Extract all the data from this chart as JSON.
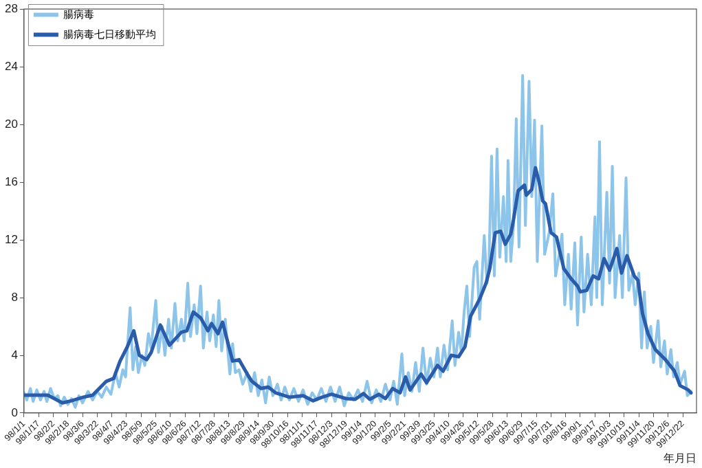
{
  "chart_data": {
    "type": "line",
    "xlabel": "年月日",
    "legend": "top left",
    "grid": false,
    "marker": "none",
    "line_style": "solid",
    "xlim": [
      "2009-01-01",
      "2011-01-06"
    ],
    "ylim": [
      0,
      28
    ],
    "yticks": [
      0,
      4,
      8,
      12,
      16,
      20,
      24,
      28
    ],
    "xticks": [
      {
        "value": "2009-01-01",
        "label": "98/1/1"
      },
      {
        "value": "2009-01-17",
        "label": "98/1/17"
      },
      {
        "value": "2009-02-02",
        "label": "98/2/2"
      },
      {
        "value": "2009-02-18",
        "label": "98/2/18"
      },
      {
        "value": "2009-03-06",
        "label": "98/3/6"
      },
      {
        "value": "2009-03-22",
        "label": "98/3/22"
      },
      {
        "value": "2009-04-07",
        "label": "98/4/7"
      },
      {
        "value": "2009-04-23",
        "label": "98/4/23"
      },
      {
        "value": "2009-05-09",
        "label": "98/5/9"
      },
      {
        "value": "2009-05-25",
        "label": "98/5/25"
      },
      {
        "value": "2009-06-10",
        "label": "98/6/10"
      },
      {
        "value": "2009-06-26",
        "label": "98/6/26"
      },
      {
        "value": "2009-07-12",
        "label": "98/7/12"
      },
      {
        "value": "2009-07-28",
        "label": "98/7/28"
      },
      {
        "value": "2009-08-13",
        "label": "98/8/13"
      },
      {
        "value": "2009-08-29",
        "label": "98/8/29"
      },
      {
        "value": "2009-09-14",
        "label": "98/9/14"
      },
      {
        "value": "2009-09-30",
        "label": "98/9/30"
      },
      {
        "value": "2009-10-16",
        "label": "98/10/16"
      },
      {
        "value": "2009-11-01",
        "label": "98/11/1"
      },
      {
        "value": "2009-11-17",
        "label": "98/11/17"
      },
      {
        "value": "2009-12-03",
        "label": "98/12/3"
      },
      {
        "value": "2009-12-19",
        "label": "98/12/19"
      },
      {
        "value": "2010-01-04",
        "label": "99/1/4"
      },
      {
        "value": "2010-01-20",
        "label": "99/1/20"
      },
      {
        "value": "2010-02-05",
        "label": "99/2/5"
      },
      {
        "value": "2010-02-21",
        "label": "99/2/21"
      },
      {
        "value": "2010-03-09",
        "label": "99/3/9"
      },
      {
        "value": "2010-03-25",
        "label": "99/3/25"
      },
      {
        "value": "2010-04-10",
        "label": "99/4/10"
      },
      {
        "value": "2010-04-26",
        "label": "99/4/26"
      },
      {
        "value": "2010-05-12",
        "label": "99/5/12"
      },
      {
        "value": "2010-05-28",
        "label": "99/5/28"
      },
      {
        "value": "2010-06-13",
        "label": "99/6/13"
      },
      {
        "value": "2010-06-29",
        "label": "99/6/29"
      },
      {
        "value": "2010-07-15",
        "label": "99/7/15"
      },
      {
        "value": "2010-07-31",
        "label": "99/7/31"
      },
      {
        "value": "2010-08-16",
        "label": "99/8/16"
      },
      {
        "value": "2010-09-01",
        "label": "99/9/1"
      },
      {
        "value": "2010-09-17",
        "label": "99/9/17"
      },
      {
        "value": "2010-10-03",
        "label": "99/10/3"
      },
      {
        "value": "2010-10-19",
        "label": "99/10/19"
      },
      {
        "value": "2010-11-04",
        "label": "99/11/4"
      },
      {
        "value": "2010-11-20",
        "label": "99/11/20"
      },
      {
        "value": "2010-12-06",
        "label": "99/12/6"
      },
      {
        "value": "2010-12-22",
        "label": "99/12/22"
      }
    ],
    "series": [
      {
        "name": "腸病毒",
        "color": "#8dc5ea",
        "x": [
          "2009-01-01",
          "2009-01-04",
          "2009-01-08",
          "2009-01-11",
          "2009-01-15",
          "2009-01-19",
          "2009-01-23",
          "2009-01-26",
          "2009-01-30",
          "2009-02-03",
          "2009-02-07",
          "2009-02-10",
          "2009-02-14",
          "2009-02-18",
          "2009-02-22",
          "2009-02-26",
          "2009-03-02",
          "2009-03-06",
          "2009-03-12",
          "2009-03-17",
          "2009-03-22",
          "2009-03-27",
          "2009-04-01",
          "2009-04-06",
          "2009-04-11",
          "2009-04-15",
          "2009-04-19",
          "2009-04-22",
          "2009-04-24",
          "2009-04-27",
          "2009-04-30",
          "2009-05-03",
          "2009-05-06",
          "2009-05-10",
          "2009-05-13",
          "2009-05-17",
          "2009-05-20",
          "2009-05-25",
          "2009-05-28",
          "2009-06-01",
          "2009-06-04",
          "2009-06-08",
          "2009-06-11",
          "2009-06-15",
          "2009-06-18",
          "2009-06-22",
          "2009-06-25",
          "2009-06-29",
          "2009-07-02",
          "2009-07-06",
          "2009-07-09",
          "2009-07-13",
          "2009-07-16",
          "2009-07-20",
          "2009-07-23",
          "2009-07-27",
          "2009-07-30",
          "2009-08-02",
          "2009-08-05",
          "2009-08-09",
          "2009-08-11",
          "2009-08-14",
          "2009-08-17",
          "2009-08-20",
          "2009-08-24",
          "2009-08-28",
          "2009-09-02",
          "2009-09-06",
          "2009-09-10",
          "2009-09-14",
          "2009-09-18",
          "2009-09-22",
          "2009-09-26",
          "2009-09-30",
          "2009-10-05",
          "2009-10-09",
          "2009-10-13",
          "2009-10-18",
          "2009-10-23",
          "2009-10-28",
          "2009-11-02",
          "2009-11-07",
          "2009-11-12",
          "2009-11-17",
          "2009-11-22",
          "2009-11-27",
          "2009-12-02",
          "2009-12-07",
          "2009-12-12",
          "2009-12-17",
          "2009-12-22",
          "2009-12-27",
          "2010-01-01",
          "2010-01-06",
          "2010-01-11",
          "2010-01-16",
          "2010-01-21",
          "2010-01-26",
          "2010-01-31",
          "2010-02-05",
          "2010-02-09",
          "2010-02-13",
          "2010-02-18",
          "2010-02-21",
          "2010-02-25",
          "2010-03-01",
          "2010-03-05",
          "2010-03-09",
          "2010-03-13",
          "2010-03-17",
          "2010-03-21",
          "2010-03-25",
          "2010-03-29",
          "2010-04-01",
          "2010-04-05",
          "2010-04-09",
          "2010-04-14",
          "2010-04-17",
          "2010-04-21",
          "2010-04-24",
          "2010-04-27",
          "2010-04-30",
          "2010-05-03",
          "2010-05-08",
          "2010-05-11",
          "2010-05-14",
          "2010-05-19",
          "2010-05-22",
          "2010-05-24",
          "2010-05-27",
          "2010-05-30",
          "2010-06-02",
          "2010-06-05",
          "2010-06-09",
          "2010-06-12",
          "2010-06-14",
          "2010-06-17",
          "2010-06-20",
          "2010-06-23",
          "2010-06-26",
          "2010-06-30",
          "2010-07-03",
          "2010-07-07",
          "2010-07-10",
          "2010-07-13",
          "2010-07-16",
          "2010-07-21",
          "2010-07-24",
          "2010-07-29",
          "2010-08-02",
          "2010-08-05",
          "2010-08-09",
          "2010-08-12",
          "2010-08-15",
          "2010-08-19",
          "2010-08-22",
          "2010-08-26",
          "2010-08-29",
          "2010-09-02",
          "2010-09-05",
          "2010-09-09",
          "2010-09-13",
          "2010-09-17",
          "2010-09-19",
          "2010-09-22",
          "2010-09-25",
          "2010-09-30",
          "2010-10-03",
          "2010-10-06",
          "2010-10-09",
          "2010-10-14",
          "2010-10-17",
          "2010-10-21",
          "2010-10-24",
          "2010-10-28",
          "2010-10-31",
          "2010-11-04",
          "2010-11-07",
          "2010-11-10",
          "2010-11-13",
          "2010-11-17",
          "2010-11-20",
          "2010-11-25",
          "2010-11-28",
          "2010-12-02",
          "2010-12-05",
          "2010-12-09",
          "2010-12-12",
          "2010-12-16",
          "2010-12-19",
          "2010-12-24",
          "2010-12-27",
          "2010-12-31"
        ],
        "values": [
          1.4,
          0.9,
          1.7,
          0.8,
          1.6,
          0.9,
          1.5,
          0.8,
          1.7,
          1.0,
          1.2,
          0.5,
          1.1,
          0.6,
          1.0,
          0.4,
          1.2,
          0.7,
          1.5,
          0.9,
          1.5,
          1.1,
          1.8,
          1.3,
          2.8,
          1.8,
          3.0,
          2.5,
          4.5,
          7.3,
          3.0,
          4.6,
          2.8,
          4.0,
          3.3,
          5.5,
          4.5,
          7.8,
          4.2,
          6.0,
          4.0,
          6.5,
          4.5,
          7.6,
          5.0,
          6.5,
          5.0,
          9.0,
          5.3,
          7.5,
          5.5,
          8.8,
          4.5,
          7.0,
          5.0,
          6.8,
          4.6,
          7.8,
          4.3,
          6.5,
          4.8,
          2.7,
          4.8,
          2.8,
          3.0,
          2.0,
          2.8,
          1.5,
          2.8,
          1.2,
          2.3,
          0.7,
          2.5,
          1.2,
          2.0,
          0.9,
          1.8,
          0.9,
          1.7,
          0.8,
          1.6,
          0.6,
          1.4,
          0.9,
          1.7,
          0.8,
          1.8,
          0.8,
          1.8,
          0.5,
          1.4,
          0.9,
          1.6,
          0.8,
          2.2,
          0.7,
          1.6,
          0.8,
          2.0,
          0.9,
          2.2,
          0.6,
          4.1,
          1.2,
          2.8,
          1.5,
          3.5,
          1.5,
          4.5,
          2.0,
          3.8,
          2.5,
          4.5,
          2.5,
          4.7,
          3.0,
          6.4,
          3.3,
          5.6,
          4.2,
          7.0,
          8.8,
          5.3,
          10.1,
          10.5,
          6.5,
          12.3,
          9.0,
          10.0,
          17.8,
          9.5,
          18.3,
          10.8,
          15.0,
          10.5,
          17.5,
          10.5,
          13.0,
          20.4,
          11.5,
          23.4,
          13.0,
          23.0,
          15.0,
          20.3,
          10.5,
          19.9,
          11.0,
          12.5,
          15.2,
          9.5,
          11.0,
          12.4,
          7.5,
          11.0,
          7.2,
          11.8,
          6.1,
          12.2,
          7.0,
          11.0,
          7.5,
          13.6,
          8.0,
          18.8,
          7.5,
          15.3,
          9.0,
          17.1,
          8.0,
          12.3,
          8.0,
          16.3,
          8.5,
          9.7,
          7.5,
          9.7,
          4.5,
          8.4,
          4.5,
          6.0,
          3.5,
          6.4,
          3.2,
          5.0,
          2.7,
          4.4,
          2.5,
          3.5,
          2.0,
          2.9,
          1.2,
          1.5
        ]
      },
      {
        "name": "腸病毒七日移動平均",
        "color": "#2a5caa",
        "x": [
          "2009-01-02",
          "2009-01-27",
          "2009-02-12",
          "2009-02-22",
          "2009-03-07",
          "2009-03-17",
          "2009-04-01",
          "2009-04-09",
          "2009-04-16",
          "2009-04-24",
          "2009-05-01",
          "2009-05-07",
          "2009-05-15",
          "2009-05-20",
          "2009-05-30",
          "2009-06-09",
          "2009-06-22",
          "2009-06-28",
          "2009-07-05",
          "2009-07-13",
          "2009-07-21",
          "2009-07-25",
          "2009-08-01",
          "2009-08-06",
          "2009-08-17",
          "2009-08-24",
          "2009-09-02",
          "2009-09-07",
          "2009-09-17",
          "2009-09-25",
          "2009-10-03",
          "2009-10-18",
          "2009-11-02",
          "2009-11-13",
          "2009-11-23",
          "2009-12-03",
          "2009-12-19",
          "2009-12-29",
          "2010-01-07",
          "2010-01-14",
          "2010-01-24",
          "2010-01-31",
          "2010-02-08",
          "2010-02-16",
          "2010-02-22",
          "2010-02-27",
          "2010-03-11",
          "2010-03-17",
          "2010-03-29",
          "2010-04-04",
          "2010-04-13",
          "2010-04-21",
          "2010-04-28",
          "2010-05-04",
          "2010-05-14",
          "2010-05-21",
          "2010-05-25",
          "2010-05-31",
          "2010-06-06",
          "2010-06-11",
          "2010-06-17",
          "2010-06-20",
          "2010-06-25",
          "2010-07-02",
          "2010-07-04",
          "2010-07-10",
          "2010-07-14",
          "2010-07-18",
          "2010-07-22",
          "2010-07-25",
          "2010-07-31",
          "2010-08-06",
          "2010-08-14",
          "2010-08-22",
          "2010-08-29",
          "2010-09-01",
          "2010-09-08",
          "2010-09-15",
          "2010-09-21",
          "2010-09-27",
          "2010-10-03",
          "2010-10-11",
          "2010-10-16",
          "2010-10-22",
          "2010-10-30",
          "2010-11-03",
          "2010-11-08",
          "2010-11-14",
          "2010-11-22",
          "2010-12-03",
          "2010-12-13",
          "2010-12-19",
          "2010-12-28",
          "2010-12-31"
        ],
        "values": [
          1.24,
          1.24,
          0.7,
          0.85,
          1.1,
          1.24,
          2.2,
          2.4,
          3.6,
          4.6,
          5.7,
          4.0,
          3.7,
          4.2,
          6.1,
          4.7,
          5.6,
          5.7,
          7.0,
          6.6,
          5.7,
          6.2,
          5.5,
          6.3,
          3.6,
          3.7,
          2.7,
          2.2,
          1.7,
          1.8,
          1.4,
          1.1,
          1.2,
          0.85,
          1.1,
          1.3,
          1.0,
          0.95,
          1.35,
          0.95,
          1.3,
          1.0,
          1.7,
          1.4,
          2.5,
          1.6,
          2.7,
          2.1,
          3.3,
          2.9,
          4.0,
          3.9,
          4.6,
          6.7,
          7.9,
          9.0,
          10.0,
          12.5,
          12.6,
          11.7,
          12.4,
          13.4,
          15.4,
          15.8,
          15.1,
          15.5,
          17.0,
          16.0,
          14.7,
          14.5,
          12.5,
          12.2,
          10.0,
          9.3,
          8.8,
          8.4,
          8.5,
          9.5,
          9.3,
          10.7,
          9.9,
          11.4,
          9.7,
          10.9,
          9.5,
          9.2,
          6.9,
          5.5,
          4.4,
          3.7,
          2.9,
          1.9,
          1.6,
          1.4
        ]
      }
    ]
  }
}
